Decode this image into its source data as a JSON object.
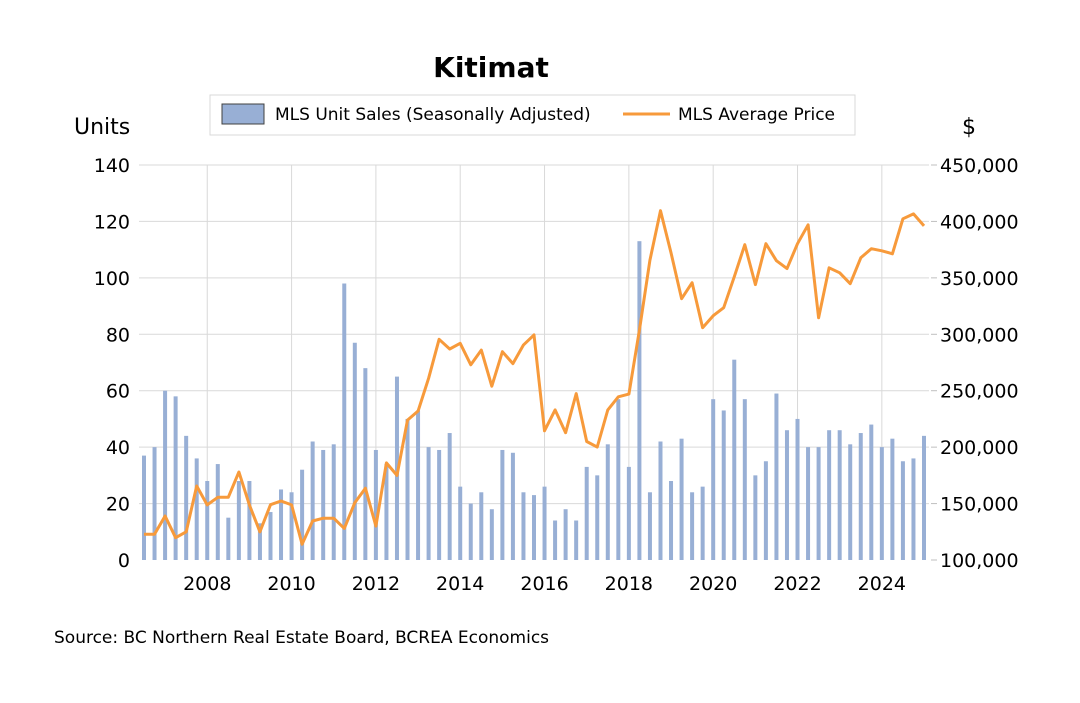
{
  "chart_data": {
    "type": "bar+line",
    "title": "Kitimat",
    "left_axis_label": "Units",
    "right_axis_label": "$",
    "left_ylim": [
      0,
      140
    ],
    "left_yticks": [
      "0",
      "20",
      "40",
      "60",
      "80",
      "100",
      "120",
      "140"
    ],
    "right_ylim": [
      100000,
      450000
    ],
    "right_yticks": [
      "100,000",
      "150,000",
      "200,000",
      "250,000",
      "300,000",
      "350,000",
      "400,000",
      "450,000"
    ],
    "x_ticks": [
      "2008",
      "2010",
      "2012",
      "2014",
      "2016",
      "2018",
      "2020",
      "2022",
      "2024"
    ],
    "x_start": "2006 Q3",
    "x_frequency": "quarterly",
    "grid": true,
    "legend_position": "top",
    "series": [
      {
        "name": "MLS Unit Sales (Seasonally Adjusted)",
        "type": "bar",
        "axis": "left",
        "color": "#98AFD5",
        "values": [
          37,
          40,
          60,
          58,
          44,
          36,
          28,
          34,
          15,
          28,
          28,
          13,
          17,
          25,
          24,
          32,
          42,
          39,
          41,
          98,
          77,
          68,
          39,
          34,
          65,
          50,
          53,
          40,
          39,
          45,
          26,
          20,
          24,
          18,
          39,
          38,
          24,
          23,
          26,
          14,
          18,
          14,
          33,
          30,
          41,
          57,
          33,
          113,
          24,
          42,
          28,
          43,
          24,
          26,
          57,
          53,
          71,
          57,
          30,
          35,
          59,
          46,
          50,
          40,
          40,
          46,
          46,
          41,
          45,
          48,
          40,
          43,
          35,
          36,
          44
        ]
      },
      {
        "name": "MLS Average Price",
        "type": "line",
        "axis": "right",
        "color": "#F79A3B",
        "values": [
          122800,
          122800,
          139000,
          119800,
          125000,
          165600,
          148800,
          155600,
          155600,
          178000,
          148800,
          125000,
          149000,
          152300,
          148800,
          114000,
          134600,
          137000,
          137000,
          128000,
          150800,
          163600,
          130000,
          186000,
          175000,
          224000,
          232000,
          261000,
          295600,
          287000,
          292000,
          273000,
          286000,
          254000,
          284600,
          274000,
          290600,
          299500,
          214500,
          233000,
          212800,
          247400,
          205000,
          200000,
          233000,
          244600,
          247000,
          303600,
          365600,
          409500,
          372300,
          331500,
          345700,
          305800,
          316500,
          323600,
          351000,
          379400,
          344000,
          380300,
          365200,
          358200,
          380300,
          397000,
          314600,
          358900,
          354500,
          344800,
          367800,
          375800,
          374000,
          371300,
          402300,
          406700,
          396000
        ]
      }
    ]
  },
  "source": "Source:  BC Northern Real Estate Board, BCREA Economics"
}
